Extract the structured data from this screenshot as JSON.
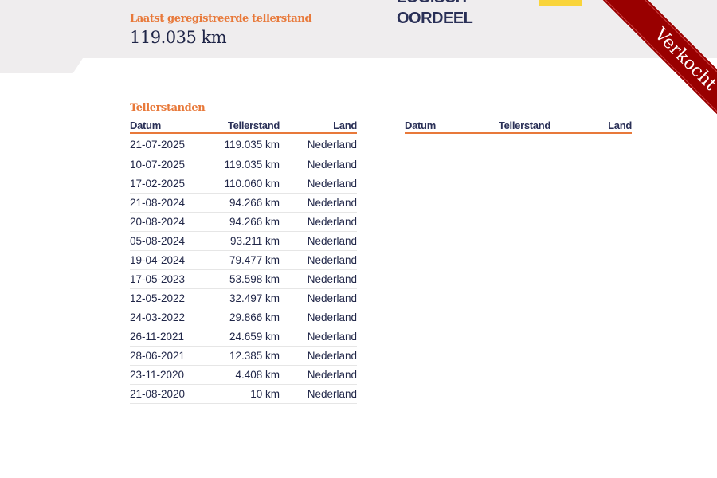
{
  "header": {
    "label": "Laatst geregistreerde tellerstand",
    "value": "119.035 km",
    "verdict_line1": "LOGISCH",
    "verdict_line2": "OORDEEL"
  },
  "ribbon": {
    "text": "Verkocht",
    "color": "#990000"
  },
  "section": {
    "title": "Tellerstanden"
  },
  "columns": [
    "Datum",
    "Tellerstand",
    "Land"
  ],
  "rows": [
    [
      "21-07-2025",
      "119.035 km",
      "Nederland"
    ],
    [
      "10-07-2025",
      "119.035 km",
      "Nederland"
    ],
    [
      "17-02-2025",
      "110.060 km",
      "Nederland"
    ],
    [
      "21-08-2024",
      "94.266 km",
      "Nederland"
    ],
    [
      "20-08-2024",
      "94.266 km",
      "Nederland"
    ],
    [
      "05-08-2024",
      "93.211 km",
      "Nederland"
    ],
    [
      "19-04-2024",
      "79.477 km",
      "Nederland"
    ],
    [
      "17-05-2023",
      "53.598 km",
      "Nederland"
    ],
    [
      "12-05-2022",
      "32.497 km",
      "Nederland"
    ],
    [
      "24-03-2022",
      "29.866 km",
      "Nederland"
    ],
    [
      "26-11-2021",
      "24.659 km",
      "Nederland"
    ],
    [
      "28-06-2021",
      "12.385 km",
      "Nederland"
    ],
    [
      "23-11-2020",
      "4.408 km",
      "Nederland"
    ],
    [
      "21-08-2020",
      "10 km",
      "Nederland"
    ]
  ],
  "colors": {
    "accent": "#e8793a",
    "text": "#1f2547",
    "banner": "#efedee",
    "yellow": "#f9d43a"
  }
}
